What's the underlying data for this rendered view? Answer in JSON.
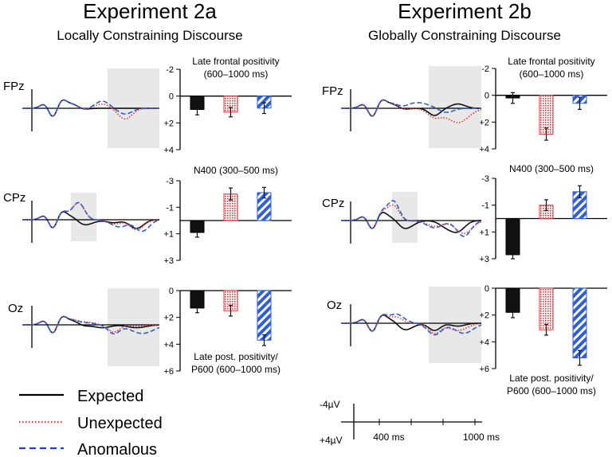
{
  "experiments": [
    {
      "title": "Experiment 2a",
      "subtitle": "Locally Constraining Discourse"
    },
    {
      "title": "Experiment 2b",
      "subtitle": "Globally Constraining Discourse"
    }
  ],
  "electrodes": [
    "FPz",
    "CPz",
    "Oz"
  ],
  "legend": [
    {
      "label": "Expected",
      "color": "#000000",
      "style": "solid"
    },
    {
      "label": "Unexpected",
      "color": "#e8353a",
      "style": "dotted"
    },
    {
      "label": "Anomalous",
      "color": "#1f3fcf",
      "style": "dashed"
    }
  ],
  "scale_bar": {
    "top_label": "-4µV",
    "bottom_label": "+4µV",
    "tick1_label": "400 ms",
    "tick2_label": "1000 ms"
  },
  "colors": {
    "expected": "#111111",
    "unexpected": "#e8353a",
    "anomalous": "#2e5fd6",
    "window": "#e8e8e8"
  },
  "chart_data": [
    {
      "type": "bar",
      "id": "2a-fpz",
      "title_lines": [
        "Late frontal positivity",
        "(600–1000 ms)"
      ],
      "categories": [
        "Expected",
        "Unexpected",
        "Anomalous"
      ],
      "values": [
        1.0,
        1.2,
        0.9
      ],
      "errors": [
        0.4,
        0.35,
        0.4
      ],
      "ylim": [
        -2,
        4
      ],
      "tick_values": [
        -2,
        0,
        2,
        4
      ],
      "tick_labels": [
        "-2",
        "0",
        "+2",
        "+4"
      ]
    },
    {
      "type": "bar",
      "id": "2a-cpz",
      "title_lines": [
        "N400 (300–500 ms)"
      ],
      "categories": [
        "Expected",
        "Unexpected",
        "Anomalous"
      ],
      "values": [
        0.9,
        -2.0,
        -2.1
      ],
      "errors": [
        0.35,
        0.45,
        0.4
      ],
      "ylim": [
        -3,
        3
      ],
      "tick_values": [
        -3,
        -1,
        1,
        3
      ],
      "tick_labels": [
        "-3",
        "-1",
        "+1",
        "+3"
      ]
    },
    {
      "type": "bar",
      "id": "2a-oz",
      "title_lines": [
        "Late post. positivity/",
        "P600 (600–1000 ms)"
      ],
      "categories": [
        "Expected",
        "Unexpected",
        "Anomalous"
      ],
      "values": [
        1.3,
        1.5,
        3.7
      ],
      "errors": [
        0.35,
        0.4,
        0.4
      ],
      "ylim": [
        0,
        6
      ],
      "tick_values": [
        0,
        2,
        4,
        6
      ],
      "tick_labels": [
        "0",
        "+2",
        "+4",
        "+6"
      ]
    },
    {
      "type": "bar",
      "id": "2b-fpz",
      "title_lines": [
        "Late frontal positivity",
        "(600–1000 ms)"
      ],
      "categories": [
        "Expected",
        "Unexpected",
        "Anomalous"
      ],
      "values": [
        0.2,
        2.9,
        0.6
      ],
      "errors": [
        0.4,
        0.45,
        0.45
      ],
      "ylim": [
        -2,
        4
      ],
      "tick_values": [
        -2,
        0,
        2,
        4
      ],
      "tick_labels": [
        "-2",
        "0",
        "+2",
        "+4"
      ]
    },
    {
      "type": "bar",
      "id": "2b-cpz",
      "title_lines": [
        "N400 (300–500 ms)"
      ],
      "categories": [
        "Expected",
        "Unexpected",
        "Anomalous"
      ],
      "values": [
        2.7,
        -1.0,
        -2.0
      ],
      "errors": [
        0.3,
        0.4,
        0.45
      ],
      "ylim": [
        -3,
        3
      ],
      "tick_values": [
        -3,
        -1,
        1,
        3
      ],
      "tick_labels": [
        "-3",
        "-1",
        "+1",
        "+3"
      ]
    },
    {
      "type": "bar",
      "id": "2b-oz",
      "title_lines": [
        "Late post. positivity/",
        "P600 (600–1000 ms)"
      ],
      "categories": [
        "Expected",
        "Unexpected",
        "Anomalous"
      ],
      "values": [
        1.8,
        3.1,
        5.2
      ],
      "errors": [
        0.4,
        0.4,
        0.55
      ],
      "ylim": [
        0,
        6
      ],
      "tick_values": [
        0,
        2,
        4,
        6
      ],
      "tick_labels": [
        "0",
        "+2",
        "+4",
        "+6"
      ]
    }
  ]
}
